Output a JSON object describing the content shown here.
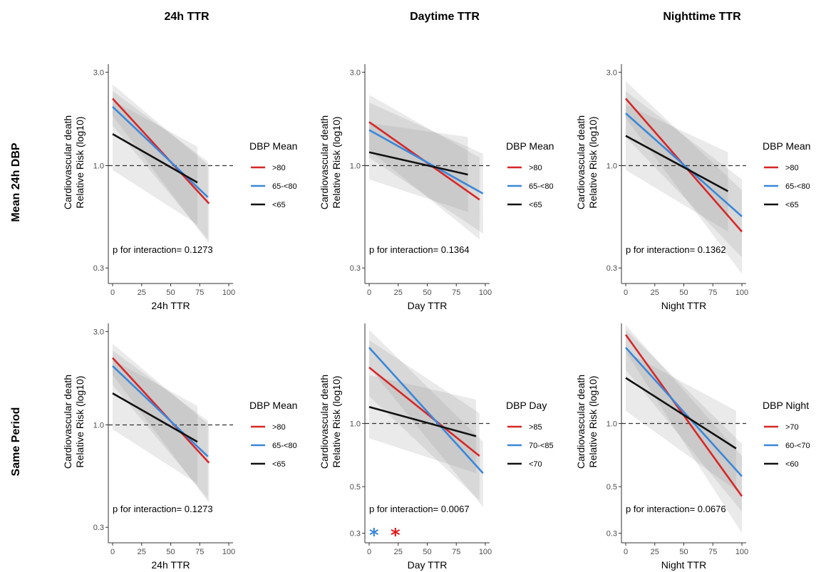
{
  "column_titles": [
    "24h TTR",
    "Daytime TTR",
    "Nighttime TTR"
  ],
  "row_titles": [
    "Mean 24h DBP",
    "Same Period"
  ],
  "chart_data": [
    {
      "type": "line",
      "row": 0,
      "col": 0,
      "ylabel_line1": "Cardiovascular death",
      "ylabel_line2": "Relative Risk (log10)",
      "xlabel": "24h TTR",
      "xlim": [
        0,
        100
      ],
      "xticks": [
        0,
        25,
        50,
        75,
        100
      ],
      "ylim": [
        0.25,
        3.3
      ],
      "yscale": "log",
      "yticks": [
        0.3,
        1.0,
        3.0
      ],
      "yticklabels": [
        "0.3",
        "1.0",
        "3.0"
      ],
      "reference_line": 1.0,
      "annotation": "p for interaction= 0.127​3",
      "legend": {
        "title": "DBP Mean",
        "labels": [
          ">80",
          "65-<80",
          "<65"
        ]
      },
      "series": [
        {
          "name": ">80",
          "color": "#d62728",
          "x": [
            0,
            83
          ],
          "y": [
            2.2,
            0.64
          ],
          "ci_upper": [
            2.6,
            1.0
          ],
          "ci_lower": [
            1.8,
            0.4
          ]
        },
        {
          "name": "65-<80",
          "color": "#3a87d8",
          "x": [
            0,
            82
          ],
          "y": [
            2.0,
            0.69
          ],
          "ci_upper": [
            2.4,
            1.05
          ],
          "ci_lower": [
            1.6,
            0.42
          ]
        },
        {
          "name": "<65",
          "color": "#111111",
          "x": [
            0,
            73
          ],
          "y": [
            1.45,
            0.82
          ],
          "ci_upper": [
            2.15,
            1.25
          ],
          "ci_lower": [
            0.95,
            0.5
          ]
        }
      ]
    },
    {
      "type": "line",
      "row": 0,
      "col": 1,
      "ylabel_line1": "Cardiovascular death",
      "ylabel_line2": "Relative Risk (log10)",
      "xlabel": "Day TTR",
      "xlim": [
        0,
        100
      ],
      "xticks": [
        0,
        25,
        50,
        75,
        100
      ],
      "ylim": [
        0.25,
        3.3
      ],
      "yscale": "log",
      "yticks": [
        0.3,
        1.0,
        3.0
      ],
      "yticklabels": [
        "0.3",
        "1.0",
        "3.0"
      ],
      "reference_line": 1.0,
      "annotation": "p for interaction= 0.1364",
      "legend": {
        "title": "DBP Mean",
        "labels": [
          ">80",
          "65-<80",
          "<65"
        ]
      },
      "series": [
        {
          "name": ">80",
          "color": "#d62728",
          "x": [
            0,
            95
          ],
          "y": [
            1.67,
            0.67
          ],
          "ci_upper": [
            2.3,
            1.1
          ],
          "ci_lower": [
            1.2,
            0.42
          ]
        },
        {
          "name": "65-<80",
          "color": "#3a87d8",
          "x": [
            0,
            98
          ],
          "y": [
            1.52,
            0.72
          ],
          "ci_upper": [
            2.1,
            1.15
          ],
          "ci_lower": [
            1.1,
            0.45
          ]
        },
        {
          "name": "<65",
          "color": "#111111",
          "x": [
            0,
            85
          ],
          "y": [
            1.17,
            0.9
          ],
          "ci_upper": [
            1.65,
            1.4
          ],
          "ci_lower": [
            0.85,
            0.58
          ]
        }
      ]
    },
    {
      "type": "line",
      "row": 0,
      "col": 2,
      "ylabel_line1": "Cardiovascular death",
      "ylabel_line2": "Relative Risk (log10)",
      "xlabel": "Night TTR",
      "xlim": [
        0,
        100
      ],
      "xticks": [
        0,
        25,
        50,
        75,
        100
      ],
      "ylim": [
        0.25,
        3.3
      ],
      "yscale": "log",
      "yticks": [
        0.3,
        1.0,
        3.0
      ],
      "yticklabels": [
        "0.3",
        "1.0",
        "3.0"
      ],
      "reference_line": 1.0,
      "annotation": "p for interaction= 0.1362",
      "legend": {
        "title": "DBP Mean",
        "labels": [
          ">80",
          "65-<80",
          "<65"
        ]
      },
      "series": [
        {
          "name": ">80",
          "color": "#d62728",
          "x": [
            0,
            100
          ],
          "y": [
            2.2,
            0.46
          ],
          "ci_upper": [
            2.7,
            0.75
          ],
          "ci_lower": [
            1.75,
            0.28
          ]
        },
        {
          "name": "65-<80",
          "color": "#3a87d8",
          "x": [
            0,
            100
          ],
          "y": [
            1.85,
            0.55
          ],
          "ci_upper": [
            2.4,
            0.85
          ],
          "ci_lower": [
            1.4,
            0.34
          ]
        },
        {
          "name": "<65",
          "color": "#111111",
          "x": [
            0,
            88
          ],
          "y": [
            1.42,
            0.74
          ],
          "ci_upper": [
            2.05,
            1.17
          ],
          "ci_lower": [
            0.95,
            0.46
          ]
        }
      ]
    },
    {
      "type": "line",
      "row": 1,
      "col": 0,
      "ylabel_line1": "Cardiovascular death",
      "ylabel_line2": "Relative Risk (log10)",
      "xlabel": "24h TTR",
      "xlim": [
        0,
        100
      ],
      "xticks": [
        0,
        25,
        50,
        75,
        100
      ],
      "ylim": [
        0.25,
        3.3
      ],
      "yscale": "log",
      "yticks": [
        0.3,
        1.0,
        3.0
      ],
      "yticklabels": [
        "0.3",
        "1.0",
        "3.0"
      ],
      "reference_line": 1.0,
      "annotation": "p for interaction= 0.1273",
      "legend": {
        "title": "DBP Mean",
        "labels": [
          ">80",
          "65-<80",
          "<65"
        ]
      },
      "series": [
        {
          "name": ">80",
          "color": "#d62728",
          "x": [
            0,
            83
          ],
          "y": [
            2.2,
            0.64
          ],
          "ci_upper": [
            2.6,
            1.0
          ],
          "ci_lower": [
            1.8,
            0.4
          ]
        },
        {
          "name": "65-<80",
          "color": "#3a87d8",
          "x": [
            0,
            82
          ],
          "y": [
            2.0,
            0.69
          ],
          "ci_upper": [
            2.4,
            1.05
          ],
          "ci_lower": [
            1.6,
            0.42
          ]
        },
        {
          "name": "<65",
          "color": "#111111",
          "x": [
            0,
            73
          ],
          "y": [
            1.45,
            0.82
          ],
          "ci_upper": [
            2.15,
            1.25
          ],
          "ci_lower": [
            0.95,
            0.5
          ]
        }
      ]
    },
    {
      "type": "line",
      "row": 1,
      "col": 1,
      "ylabel_line1": "Cardiovascular death",
      "ylabel_line2": "Relative Risk (log10)",
      "xlabel": "Day TTR",
      "xlim": [
        0,
        100
      ],
      "xticks": [
        0,
        25,
        50,
        75,
        100
      ],
      "ylim": [
        0.27,
        3.0
      ],
      "yscale": "log",
      "yticks": [
        0.3,
        0.5,
        1.0
      ],
      "yticklabels": [
        "0.3",
        "0.5",
        "1.0"
      ],
      "reference_line": 1.0,
      "annotation": "p for interaction= 0.0067",
      "significance_markers": [
        {
          "symbol": "*",
          "color": "#3a87d8"
        },
        {
          "symbol": "*",
          "color": "#e31a1c"
        }
      ],
      "legend": {
        "title": "DBP Day",
        "labels": [
          ">85",
          "70-<85",
          "<70"
        ]
      },
      "series": [
        {
          "name": ">85",
          "color": "#d62728",
          "x": [
            0,
            95
          ],
          "y": [
            1.85,
            0.7
          ],
          "ci_upper": [
            2.5,
            1.12
          ],
          "ci_lower": [
            1.35,
            0.43
          ]
        },
        {
          "name": "70-<85",
          "color": "#3a87d8",
          "x": [
            0,
            98
          ],
          "y": [
            2.3,
            0.58
          ],
          "ci_upper": [
            2.8,
            0.82
          ],
          "ci_lower": [
            1.85,
            0.4
          ]
        },
        {
          "name": "<70",
          "color": "#111111",
          "x": [
            0,
            92
          ],
          "y": [
            1.2,
            0.87
          ],
          "ci_upper": [
            1.7,
            1.3
          ],
          "ci_lower": [
            0.85,
            0.58
          ]
        }
      ]
    },
    {
      "type": "line",
      "row": 1,
      "col": 2,
      "ylabel_line1": "Cardiovascular death",
      "ylabel_line2": "Relative Risk (log10)",
      "xlabel": "Night TTR",
      "xlim": [
        0,
        100
      ],
      "xticks": [
        0,
        25,
        50,
        75,
        100
      ],
      "ylim": [
        0.27,
        3.0
      ],
      "yscale": "log",
      "yticks": [
        0.3,
        0.5,
        1.0
      ],
      "yticklabels": [
        "0.3",
        "0.5",
        "1.0"
      ],
      "reference_line": 1.0,
      "annotation": "p for interaction= 0.0676",
      "legend": {
        "title": "DBP Night",
        "labels": [
          ">70",
          "60-<70",
          "<60"
        ]
      },
      "series": [
        {
          "name": ">70",
          "color": "#d62728",
          "x": [
            0,
            100
          ],
          "y": [
            2.65,
            0.45
          ],
          "ci_upper": [
            2.95,
            0.7
          ],
          "ci_lower": [
            2.2,
            0.3
          ]
        },
        {
          "name": "60-<70",
          "color": "#3a87d8",
          "x": [
            0,
            100
          ],
          "y": [
            2.3,
            0.56
          ],
          "ci_upper": [
            2.8,
            0.8
          ],
          "ci_lower": [
            1.8,
            0.38
          ]
        },
        {
          "name": "<60",
          "color": "#111111",
          "x": [
            0,
            95
          ],
          "y": [
            1.65,
            0.76
          ],
          "ci_upper": [
            2.2,
            1.15
          ],
          "ci_lower": [
            1.15,
            0.48
          ]
        }
      ]
    }
  ]
}
